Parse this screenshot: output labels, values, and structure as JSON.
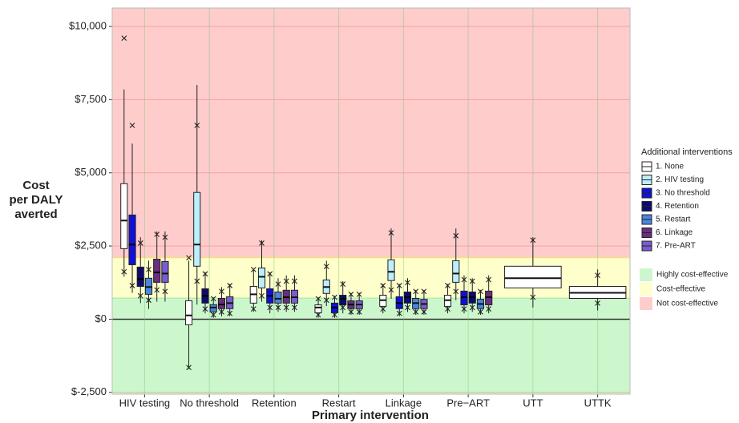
{
  "chart_data": {
    "type": "box",
    "xlabel": "Primary intervention",
    "ylabel_lines": [
      "Cost",
      "per DALY",
      "averted"
    ],
    "categories": [
      "HIV testing",
      "No threshold",
      "Retention",
      "Restart",
      "Linkage",
      "Pre−ART",
      "UTT",
      "UTTK"
    ],
    "ylim": [
      -2560,
      10630
    ],
    "yticks": [
      {
        "value": -2500,
        "label": "$-2,500"
      },
      {
        "value": 0,
        "label": "$0"
      },
      {
        "value": 2500,
        "label": "$2,500"
      },
      {
        "value": 5000,
        "label": "$5,000"
      },
      {
        "value": 7500,
        "label": "$7,500"
      },
      {
        "value": 10000,
        "label": "$10,000"
      }
    ],
    "grid": true,
    "legend_title": "Additional interventions",
    "bands": [
      {
        "name": "Highly cost-effective",
        "color": "#ccf7cc",
        "max": 720
      },
      {
        "name": "Cost-effective",
        "color": "#ffffcc",
        "max": 2100
      },
      {
        "name": "Not cost-effective",
        "color": "#ffcccc"
      }
    ],
    "series": [
      {
        "name": "1. None",
        "color": "#ffffff",
        "boxes": [
          {
            "wlo": 1450,
            "q1": 2410,
            "median": 3370,
            "q3": 4630,
            "whi": 7850,
            "xlo": 1620,
            "xhi": 9600
          },
          {
            "wlo": -1700,
            "q1": -190,
            "median": 130,
            "q3": 630,
            "whi": 2000,
            "xlo": -1650,
            "xhi": 2100
          },
          {
            "wlo": 250,
            "q1": 550,
            "median": 850,
            "q3": 1120,
            "whi": 1700,
            "xlo": 350,
            "xhi": 1700
          },
          {
            "wlo": 50,
            "q1": 220,
            "median": 400,
            "q3": 490,
            "whi": 750,
            "xlo": 150,
            "xhi": 700
          },
          {
            "wlo": 200,
            "q1": 440,
            "median": 650,
            "q3": 820,
            "whi": 1200,
            "xlo": 350,
            "xhi": 1150
          },
          {
            "wlo": 200,
            "q1": 440,
            "median": 650,
            "q3": 820,
            "whi": 1200,
            "xlo": 350,
            "xhi": 1150
          },
          {
            "wlo": 400,
            "q1": 1070,
            "median": 1400,
            "q3": 1810,
            "whi": 2800,
            "xlo": 750,
            "xhi": 2700
          },
          {
            "wlo": 300,
            "q1": 710,
            "median": 900,
            "q3": 1120,
            "whi": 1700,
            "xlo": 550,
            "xhi": 1500
          }
        ]
      },
      {
        "name": "2. HIV testing",
        "color": "#bdeefc",
        "boxes": [
          null,
          {
            "wlo": 500,
            "q1": 1810,
            "median": 2550,
            "q3": 4330,
            "whi": 8000,
            "xlo": 1300,
            "xhi": 6620
          },
          {
            "wlo": 600,
            "q1": 1070,
            "median": 1450,
            "q3": 1750,
            "whi": 2700,
            "xlo": 800,
            "xhi": 2600
          },
          {
            "wlo": 450,
            "q1": 880,
            "median": 1100,
            "q3": 1340,
            "whi": 2000,
            "xlo": 650,
            "xhi": 1800
          },
          {
            "wlo": 700,
            "q1": 1320,
            "median": 1620,
            "q3": 2030,
            "whi": 3100,
            "xlo": 1000,
            "xhi": 2950
          },
          {
            "wlo": 650,
            "q1": 1260,
            "median": 1560,
            "q3": 2000,
            "whi": 3100,
            "xlo": 950,
            "xhi": 2850
          },
          null,
          null
        ]
      },
      {
        "name": "3. No threshold",
        "color": "#1010d8",
        "boxes": [
          {
            "wlo": 900,
            "q1": 1860,
            "median": 2550,
            "q3": 3560,
            "whi": 6000,
            "xlo": 1150,
            "xhi": 6620
          },
          null,
          {
            "wlo": 200,
            "q1": 550,
            "median": 800,
            "q3": 1040,
            "whi": 1600,
            "xlo": 400,
            "xhi": 1550
          },
          {
            "wlo": 50,
            "q1": 220,
            "median": 400,
            "q3": 550,
            "whi": 800,
            "xlo": 150,
            "xhi": 750
          },
          {
            "wlo": 100,
            "q1": 360,
            "median": 550,
            "q3": 770,
            "whi": 1200,
            "xlo": 200,
            "xhi": 1150
          },
          {
            "wlo": 200,
            "q1": 490,
            "median": 750,
            "q3": 960,
            "whi": 1500,
            "xlo": 350,
            "xhi": 1350
          },
          null,
          null
        ]
      },
      {
        "name": "4. Retention",
        "color": "#0b0b70",
        "boxes": [
          {
            "wlo": 550,
            "q1": 1120,
            "median": 1370,
            "q3": 1780,
            "whi": 2800,
            "xlo": 800,
            "xhi": 2600
          },
          {
            "wlo": 200,
            "q1": 550,
            "median": 800,
            "q3": 1040,
            "whi": 1600,
            "xlo": 350,
            "xhi": 1550
          },
          null,
          {
            "wlo": 200,
            "q1": 490,
            "median": 700,
            "q3": 820,
            "whi": 1300,
            "xlo": 400,
            "xhi": 1200
          },
          {
            "wlo": 250,
            "q1": 550,
            "median": 750,
            "q3": 930,
            "whi": 1400,
            "xlo": 400,
            "xhi": 1250
          },
          {
            "wlo": 250,
            "q1": 550,
            "median": 750,
            "q3": 930,
            "whi": 1400,
            "xlo": 400,
            "xhi": 1300
          },
          null,
          null
        ]
      },
      {
        "name": "5. Restart",
        "color": "#4a86e0",
        "boxes": [
          {
            "wlo": 350,
            "q1": 850,
            "median": 1100,
            "q3": 1400,
            "whi": 2000,
            "xlo": 650,
            "xhi": 1700
          },
          {
            "wlo": 50,
            "q1": 250,
            "median": 400,
            "q3": 500,
            "whi": 750,
            "xlo": 150,
            "xhi": 700
          },
          {
            "wlo": 250,
            "q1": 550,
            "median": 700,
            "q3": 930,
            "whi": 1400,
            "xlo": 400,
            "xhi": 1200
          },
          null,
          {
            "wlo": 150,
            "q1": 360,
            "median": 550,
            "q3": 710,
            "whi": 1000,
            "xlo": 250,
            "xhi": 950
          },
          {
            "wlo": 150,
            "q1": 360,
            "median": 520,
            "q3": 680,
            "whi": 1000,
            "xlo": 250,
            "xhi": 950
          },
          null,
          null
        ]
      },
      {
        "name": "6. Linkage",
        "color": "#6a2e80",
        "boxes": [
          {
            "wlo": 600,
            "q1": 1260,
            "median": 1600,
            "q3": 2050,
            "whi": 3000,
            "xlo": 1000,
            "xhi": 2900
          },
          {
            "wlo": 100,
            "q1": 360,
            "median": 500,
            "q3": 710,
            "whi": 1100,
            "xlo": 250,
            "xhi": 950
          },
          {
            "wlo": 250,
            "q1": 550,
            "median": 750,
            "q3": 990,
            "whi": 1500,
            "xlo": 400,
            "xhi": 1300
          },
          {
            "wlo": 150,
            "q1": 360,
            "median": 500,
            "q3": 630,
            "whi": 900,
            "xlo": 250,
            "xhi": 850
          },
          null,
          {
            "wlo": 200,
            "q1": 490,
            "median": 750,
            "q3": 960,
            "whi": 1500,
            "xlo": 350,
            "xhi": 1350
          },
          null,
          null
        ]
      },
      {
        "name": "7. Pre-ART",
        "color": "#7b5cd0",
        "boxes": [
          {
            "wlo": 600,
            "q1": 1260,
            "median": 1560,
            "q3": 1970,
            "whi": 3000,
            "xlo": 950,
            "xhi": 2800
          },
          {
            "wlo": 100,
            "q1": 360,
            "median": 550,
            "q3": 770,
            "whi": 1200,
            "xlo": 200,
            "xhi": 1150
          },
          {
            "wlo": 250,
            "q1": 550,
            "median": 750,
            "q3": 990,
            "whi": 1500,
            "xlo": 400,
            "xhi": 1300
          },
          {
            "wlo": 150,
            "q1": 360,
            "median": 500,
            "q3": 630,
            "whi": 900,
            "xlo": 250,
            "xhi": 850
          },
          {
            "wlo": 150,
            "q1": 360,
            "median": 520,
            "q3": 680,
            "whi": 1000,
            "xlo": 250,
            "xhi": 950
          },
          null,
          null,
          null
        ]
      }
    ]
  }
}
